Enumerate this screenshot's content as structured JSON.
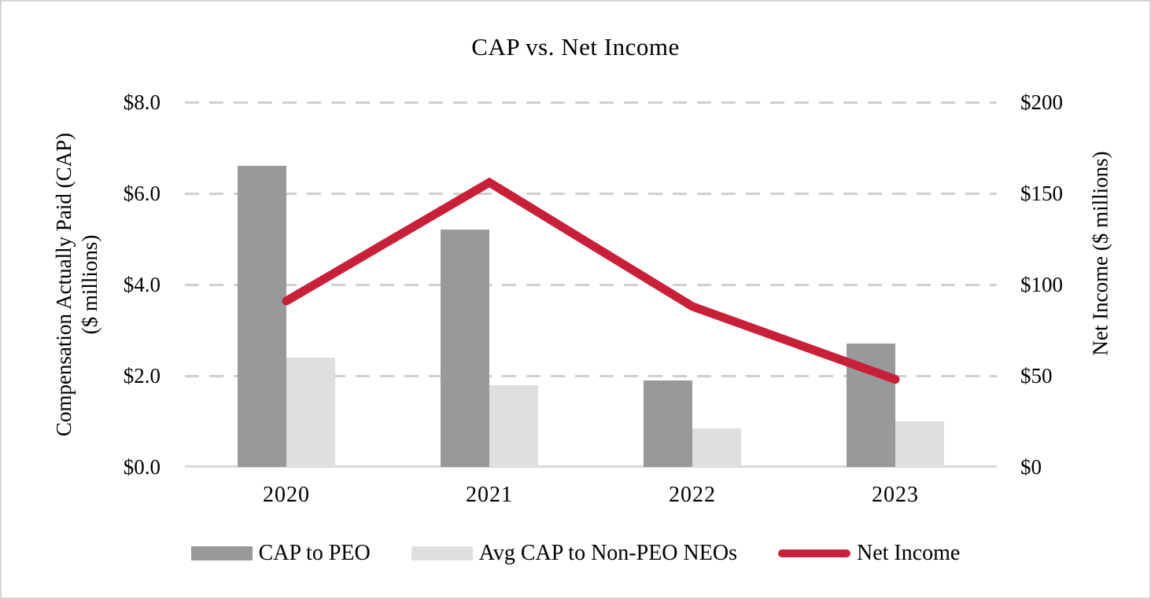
{
  "title": "CAP vs. Net Income",
  "chart_data": {
    "type": "bar-line-combo",
    "categories": [
      "2020",
      "2021",
      "2022",
      "2023"
    ],
    "series": [
      {
        "name": "CAP to PEO",
        "type": "bar",
        "axis": "left",
        "color": "#98999b",
        "values": [
          6.6,
          5.2,
          1.9,
          2.7
        ]
      },
      {
        "name": "Avg CAP to Non-PEO NEOs",
        "type": "bar",
        "axis": "left",
        "color": "#dedfe1",
        "values": [
          2.4,
          1.8,
          0.85,
          1.0
        ]
      },
      {
        "name": "Net Income",
        "type": "line",
        "axis": "right",
        "color": "#c92039",
        "values": [
          91,
          156,
          88,
          48
        ]
      }
    ],
    "left_axis": {
      "title_line1": "Compensation Actually Paid (CAP)",
      "title_line2": "($ millions)",
      "ticks": [
        "$8.0",
        "$6.0",
        "$4.0",
        "$2.0",
        "$0.0"
      ],
      "min": 0,
      "max": 8
    },
    "right_axis": {
      "title": "Net Income ($ millions)",
      "ticks": [
        "$200",
        "$150",
        "$100",
        "$50",
        "$0"
      ],
      "min": 0,
      "max": 200
    },
    "grid": "horizontal-dashed",
    "gridline_color": "#cfcfcf",
    "axis_line_color": "#d9dadb",
    "legend_position": "bottom"
  }
}
